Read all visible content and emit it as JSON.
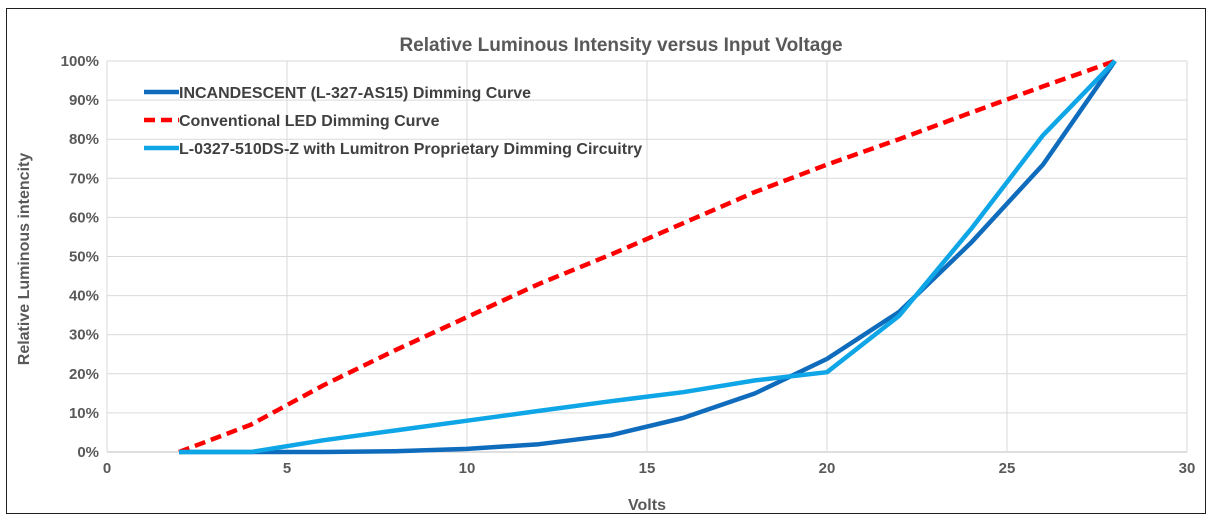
{
  "chart_data": {
    "type": "line",
    "title": "Relative Luminous Intensity versus Input Voltage",
    "xlabel": "Volts",
    "ylabel": "Relative Luminous intencity",
    "xlim": [
      0,
      30
    ],
    "ylim": [
      0,
      100
    ],
    "x_ticks": [
      "0",
      "5",
      "10",
      "15",
      "20",
      "25",
      "30"
    ],
    "y_ticks": [
      "0%",
      "10%",
      "20%",
      "30%",
      "40%",
      "50%",
      "60%",
      "70%",
      "80%",
      "90%",
      "100%"
    ],
    "grid": "vertical and horizontal",
    "legend_position": "top-left",
    "series": [
      {
        "name": "INCANDESCENT (L-327-AS15) Dimming Curve",
        "color": "#0f6cbd",
        "style": "solid",
        "x": [
          2,
          4,
          6,
          8,
          10,
          12,
          14,
          16,
          18,
          20,
          22,
          24,
          26,
          28
        ],
        "y": [
          0,
          0,
          0,
          0.2,
          0.8,
          2.0,
          4.3,
          8.7,
          15,
          23.8,
          35.8,
          53.5,
          73.5,
          100
        ]
      },
      {
        "name": "Conventional LED Dimming Curve",
        "color": "#ff0000",
        "style": "dashed",
        "x": [
          2,
          4,
          6,
          8,
          10,
          12,
          14,
          16,
          18,
          20,
          22,
          24,
          26,
          28
        ],
        "y": [
          0,
          7,
          17,
          26,
          34.5,
          43,
          50.5,
          58.5,
          66.5,
          73.5,
          80,
          86.8,
          93.5,
          100
        ]
      },
      {
        "name": "L-0327-510DS-Z with Lumitron Proprietary Dimming Circuitry",
        "color": "#0ea6e6",
        "style": "solid",
        "x": [
          2,
          4,
          6,
          8,
          10,
          12,
          14,
          16,
          18,
          20,
          22,
          24,
          26,
          28
        ],
        "y": [
          0,
          0,
          3,
          5.5,
          8,
          10.5,
          13,
          15.3,
          18.3,
          20.4,
          34.8,
          57,
          81,
          100
        ]
      }
    ]
  }
}
